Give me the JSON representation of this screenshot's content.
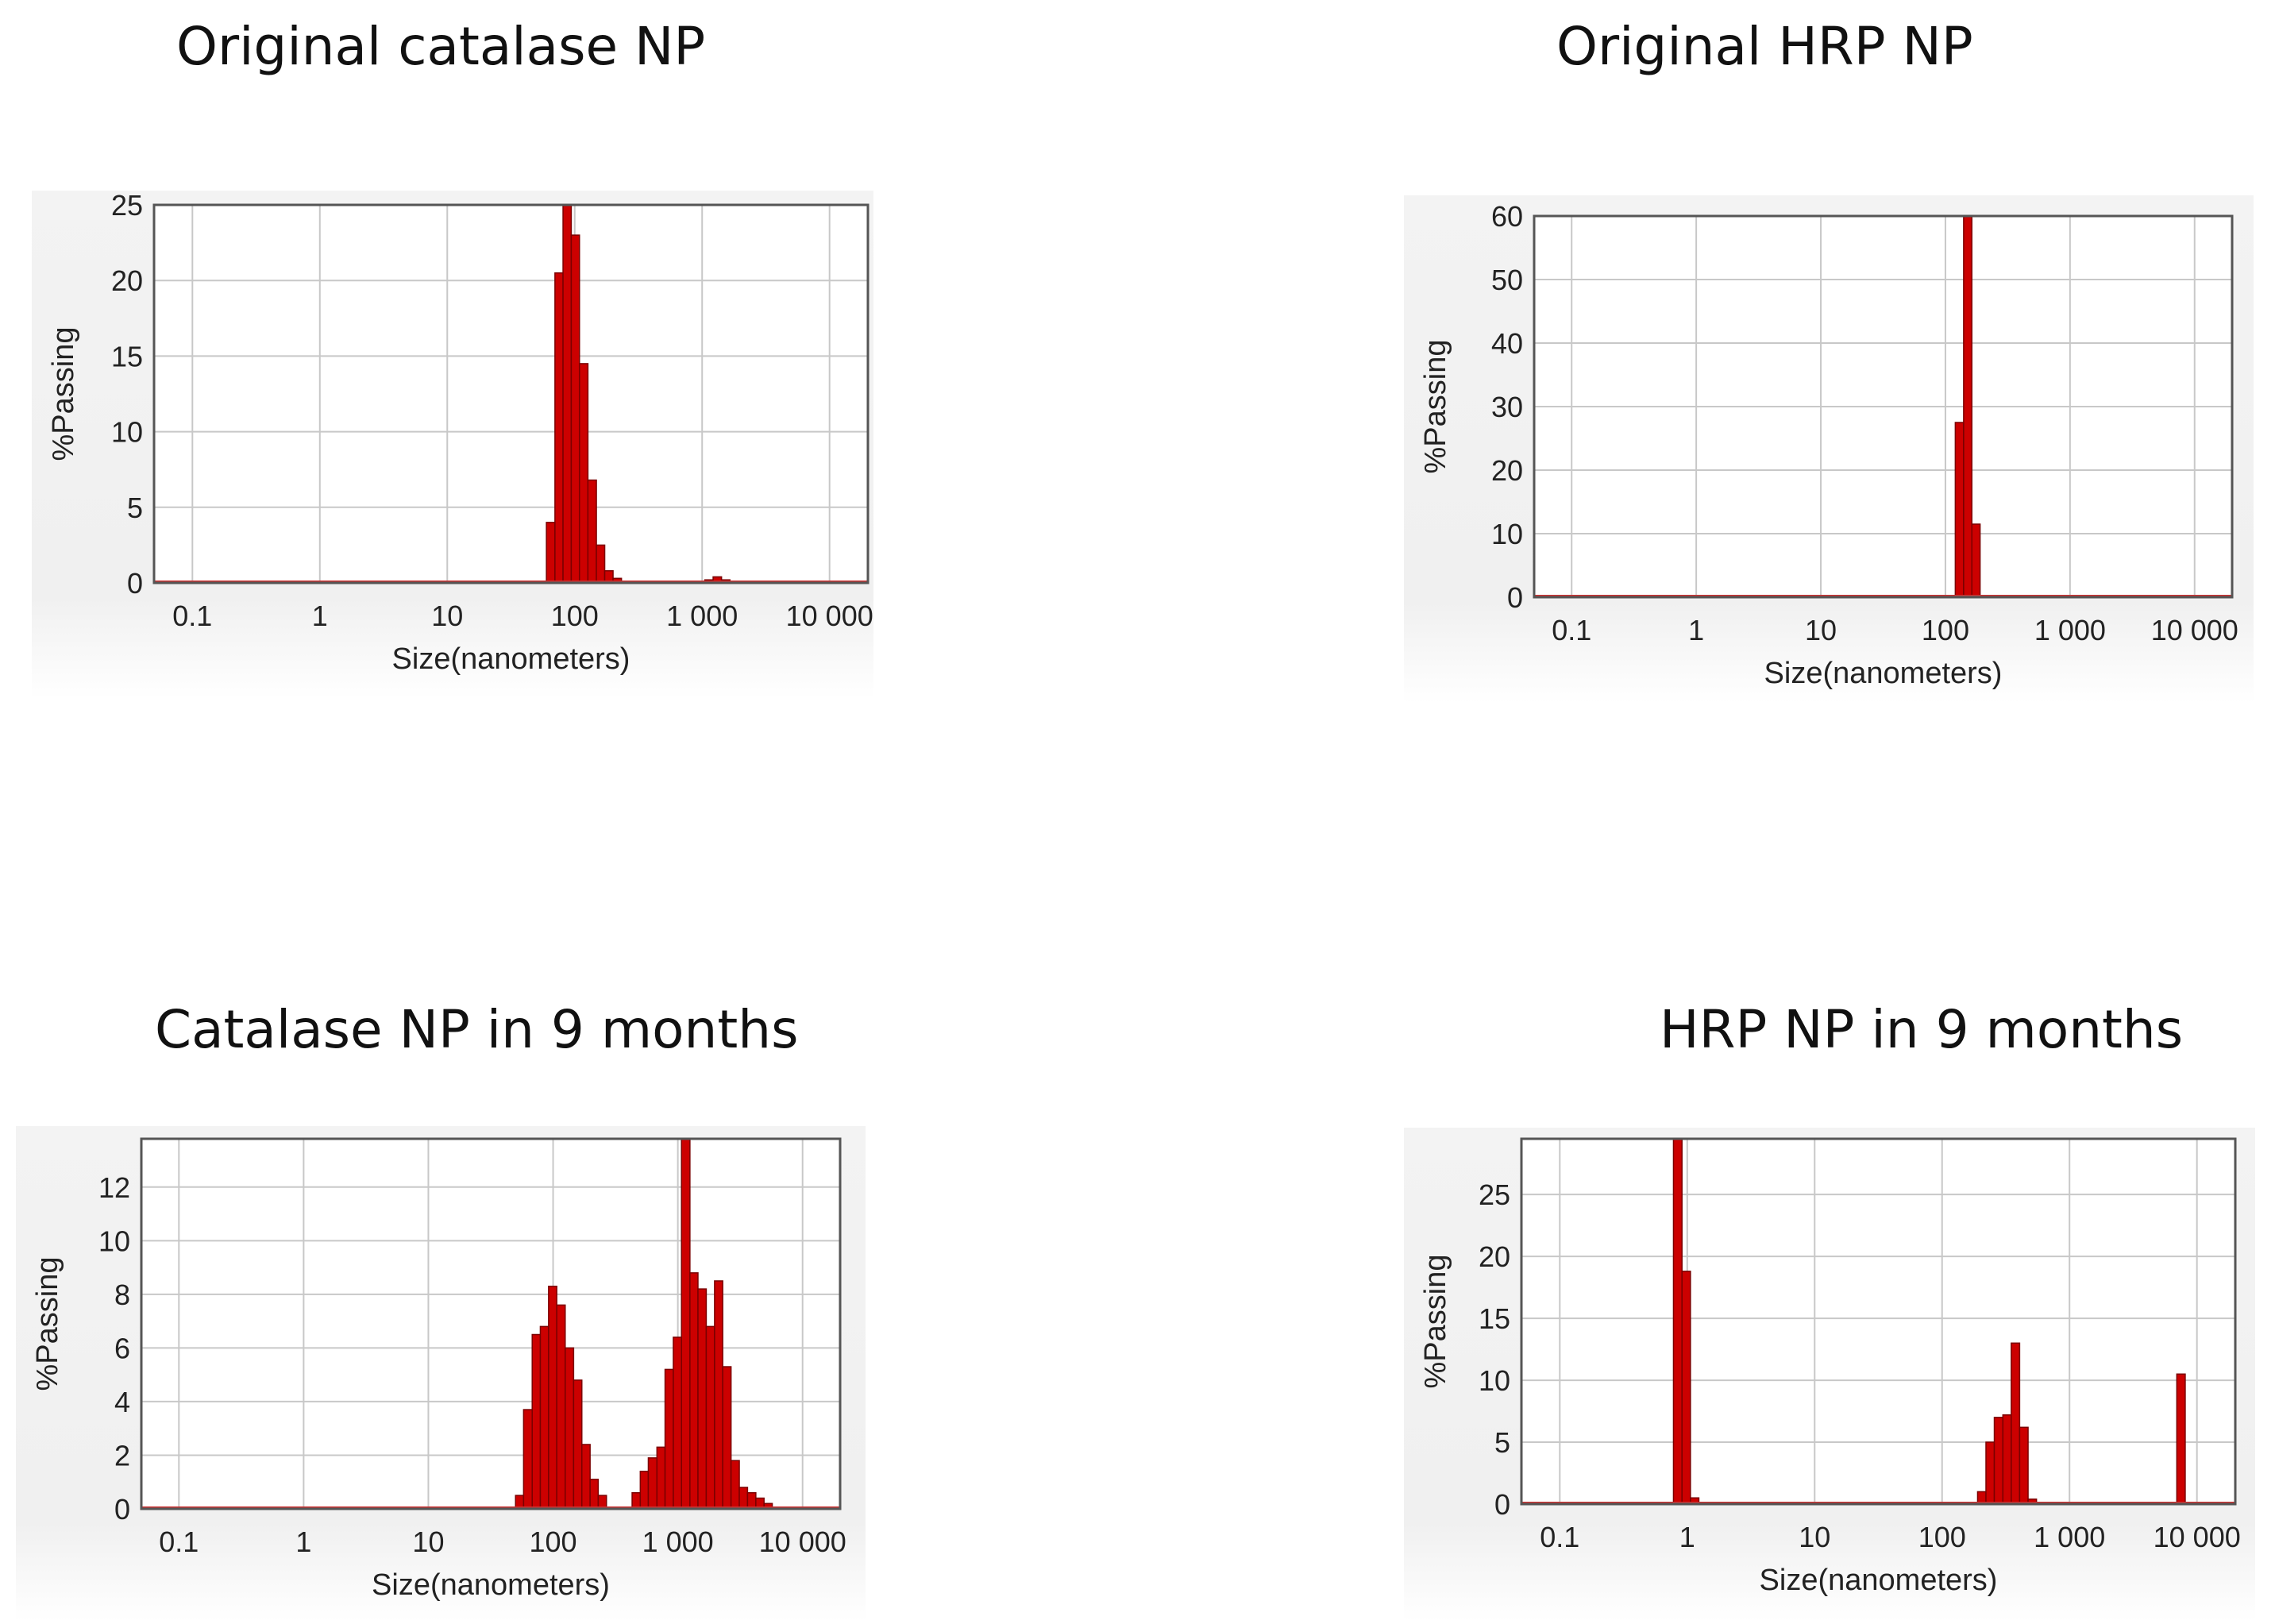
{
  "chart_data": [
    {
      "type": "bar",
      "title": "Original catalase NP",
      "xlabel": "Size(nanometers)",
      "ylabel": "%Passing",
      "xscale": "log",
      "xlim": [
        0.05,
        20000
      ],
      "ylim": [
        0,
        25
      ],
      "xticks": [
        0.1,
        1,
        10,
        100,
        1000,
        10000
      ],
      "xtick_labels": [
        "0.1",
        "1",
        "10",
        "100",
        "1 000",
        "10 000"
      ],
      "yticks": [
        0,
        5,
        10,
        15,
        20,
        25
      ],
      "grid": true,
      "bar_color": "#cc0000",
      "bars": [
        {
          "x": 60,
          "y": 4
        },
        {
          "x": 70,
          "y": 20.5
        },
        {
          "x": 81,
          "y": 25
        },
        {
          "x": 94,
          "y": 23
        },
        {
          "x": 109,
          "y": 14.5
        },
        {
          "x": 127,
          "y": 6.8
        },
        {
          "x": 148,
          "y": 2.5
        },
        {
          "x": 172,
          "y": 0.8
        },
        {
          "x": 200,
          "y": 0.3
        },
        {
          "x": 1050,
          "y": 0.2
        },
        {
          "x": 1220,
          "y": 0.4
        },
        {
          "x": 1420,
          "y": 0.2
        }
      ]
    },
    {
      "type": "bar",
      "title": "Original HRP NP",
      "xlabel": "Size(nanometers)",
      "ylabel": "%Passing",
      "xscale": "log",
      "xlim": [
        0.05,
        20000
      ],
      "ylim": [
        0,
        60
      ],
      "xticks": [
        0.1,
        1,
        10,
        100,
        1000,
        10000
      ],
      "xtick_labels": [
        "0.1",
        "1",
        "10",
        "100",
        "1 000",
        "10 000"
      ],
      "yticks": [
        0,
        10,
        20,
        30,
        40,
        50,
        60
      ],
      "grid": true,
      "bar_color": "#cc0000",
      "bars": [
        {
          "x": 120,
          "y": 27.5
        },
        {
          "x": 140,
          "y": 60
        },
        {
          "x": 163,
          "y": 11.5
        }
      ]
    },
    {
      "type": "bar",
      "title": "Catalase NP in 9 months",
      "xlabel": "Size(nanometers)",
      "ylabel": "%Passing",
      "xscale": "log",
      "xlim": [
        0.05,
        20000
      ],
      "ylim": [
        0,
        13.8
      ],
      "xticks": [
        0.1,
        1,
        10,
        100,
        1000,
        10000
      ],
      "xtick_labels": [
        "0.1",
        "1",
        "10",
        "100",
        "1 000",
        "10 000"
      ],
      "yticks": [
        0,
        2,
        4,
        6,
        8,
        10,
        12
      ],
      "grid": true,
      "bar_color": "#cc0000",
      "bars": [
        {
          "x": 50,
          "y": 0.5
        },
        {
          "x": 58,
          "y": 3.7
        },
        {
          "x": 68,
          "y": 6.5
        },
        {
          "x": 79,
          "y": 6.8
        },
        {
          "x": 92,
          "y": 8.3
        },
        {
          "x": 107,
          "y": 7.6
        },
        {
          "x": 125,
          "y": 6.0
        },
        {
          "x": 146,
          "y": 4.8
        },
        {
          "x": 170,
          "y": 2.4
        },
        {
          "x": 198,
          "y": 1.1
        },
        {
          "x": 230,
          "y": 0.5
        },
        {
          "x": 430,
          "y": 0.6
        },
        {
          "x": 500,
          "y": 1.4
        },
        {
          "x": 580,
          "y": 1.9
        },
        {
          "x": 680,
          "y": 2.3
        },
        {
          "x": 790,
          "y": 5.2
        },
        {
          "x": 920,
          "y": 6.4
        },
        {
          "x": 1070,
          "y": 13.8
        },
        {
          "x": 1250,
          "y": 8.8
        },
        {
          "x": 1450,
          "y": 8.2
        },
        {
          "x": 1690,
          "y": 6.8
        },
        {
          "x": 1970,
          "y": 8.5
        },
        {
          "x": 2290,
          "y": 5.3
        },
        {
          "x": 2670,
          "y": 1.8
        },
        {
          "x": 3110,
          "y": 0.8
        },
        {
          "x": 3620,
          "y": 0.6
        },
        {
          "x": 4220,
          "y": 0.4
        },
        {
          "x": 4910,
          "y": 0.2
        }
      ]
    },
    {
      "type": "bar",
      "title": "HRP NP in 9 months",
      "xlabel": "Size(nanometers)",
      "ylabel": "%Passing",
      "xscale": "log",
      "xlim": [
        0.05,
        20000
      ],
      "ylim": [
        0,
        29.5
      ],
      "xticks": [
        0.1,
        1,
        10,
        100,
        1000,
        10000
      ],
      "xtick_labels": [
        "0.1",
        "1",
        "10",
        "100",
        "1 000",
        "10 000"
      ],
      "yticks": [
        0,
        5,
        10,
        15,
        20,
        25
      ],
      "grid": true,
      "bar_color": "#cc0000",
      "bars": [
        {
          "x": 0.78,
          "y": 29.5
        },
        {
          "x": 0.91,
          "y": 18.8
        },
        {
          "x": 1.06,
          "y": 0.5
        },
        {
          "x": 190,
          "y": 1.0
        },
        {
          "x": 221,
          "y": 5.0
        },
        {
          "x": 257,
          "y": 7.0
        },
        {
          "x": 300,
          "y": 7.2
        },
        {
          "x": 349,
          "y": 13.0
        },
        {
          "x": 406,
          "y": 6.2
        },
        {
          "x": 473,
          "y": 0.4
        },
        {
          "x": 6950,
          "y": 10.5
        }
      ]
    }
  ]
}
